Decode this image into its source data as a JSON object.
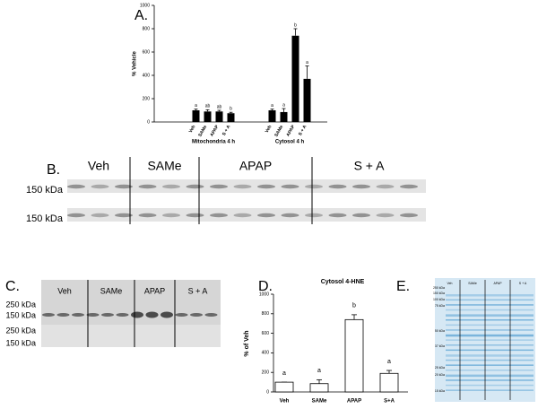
{
  "chart_data": [
    {
      "type": "bar",
      "panel_label": "A.",
      "ylabel": "% Vehicle",
      "color": "#000000",
      "ylim": [
        0,
        1000
      ],
      "yticks": [
        0,
        200,
        400,
        600,
        800,
        1000
      ],
      "groups": [
        {
          "name": "Mitochondria 4 h",
          "categories": [
            "Veh",
            "SAMe",
            "APAP",
            "S + A"
          ],
          "values": [
            100,
            90,
            90,
            75
          ],
          "errors": [
            10,
            15,
            10,
            8
          ],
          "letters": [
            "a",
            "ab",
            "ab",
            "b"
          ]
        },
        {
          "name": "Cytosol 4 h",
          "categories": [
            "Veh",
            "SAMe",
            "APAP",
            "S + A"
          ],
          "values": [
            100,
            85,
            740,
            370
          ],
          "errors": [
            10,
            30,
            60,
            110
          ],
          "letters": [
            "a",
            "a",
            "b",
            "a"
          ]
        }
      ]
    },
    {
      "type": "bar",
      "panel_label": "D.",
      "title": "Cytosol 4-HNE",
      "ylabel": "% of Veh",
      "color": "#ffffff",
      "ylim": [
        0,
        1000
      ],
      "yticks": [
        0,
        200,
        400,
        600,
        800,
        1000
      ],
      "categories": [
        "Veh",
        "SAMe",
        "APAP",
        "S+A"
      ],
      "values": [
        100,
        85,
        740,
        190
      ],
      "errors": [
        0,
        40,
        50,
        30
      ],
      "letters": [
        "a",
        "a",
        "b",
        "a"
      ]
    }
  ],
  "blot_b": {
    "label": "B.",
    "lanes": [
      "Veh",
      "SAMe",
      "APAP",
      "S + A"
    ],
    "markers": [
      "150 kDa",
      "150 kDa"
    ]
  },
  "blot_c": {
    "label": "C.",
    "lanes": [
      "Veh",
      "SAMe",
      "APAP",
      "S + A"
    ],
    "markers": [
      "250 kDa",
      "150 kDa",
      "250 kDa",
      "150 kDa"
    ]
  },
  "gel_e": {
    "label": "E.",
    "lanes": [
      "Veh",
      "SAMe",
      "APAP",
      "S + A"
    ],
    "markers": [
      "250 kDa",
      "150 kDa",
      "100 kDa",
      "75 kDa",
      "50 kDa",
      "37 kDa",
      "25 kDa",
      "20 kDa",
      "15 kDa"
    ]
  }
}
